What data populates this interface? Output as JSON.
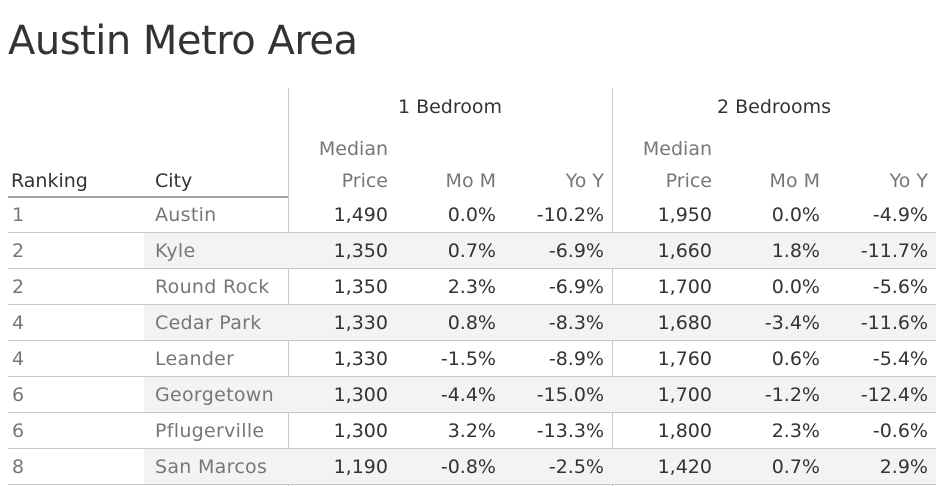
{
  "title": "Austin Metro Area",
  "groups": [
    "1 Bedroom",
    "2 Bedrooms"
  ],
  "columns": {
    "ranking": "Ranking",
    "city": "City",
    "median_line1": "Median",
    "median_line2": "Price",
    "mom": "Mo M",
    "yoy": "Yo Y"
  },
  "chart_data": {
    "type": "table",
    "title": "Austin Metro Area",
    "columns": [
      "Ranking",
      "City",
      "1 Bedroom Median Price",
      "1 Bedroom Mo M",
      "1 Bedroom Yo Y",
      "2 Bedrooms Median Price",
      "2 Bedrooms Mo M",
      "2 Bedrooms Yo Y"
    ],
    "rows": [
      {
        "rank": "1",
        "city": "Austin",
        "b1_price": "1,490",
        "b1_mom": "0.0%",
        "b1_yoy": "-10.2%",
        "b2_price": "1,950",
        "b2_mom": "0.0%",
        "b2_yoy": "-4.9%"
      },
      {
        "rank": "2",
        "city": "Kyle",
        "b1_price": "1,350",
        "b1_mom": "0.7%",
        "b1_yoy": "-6.9%",
        "b2_price": "1,660",
        "b2_mom": "1.8%",
        "b2_yoy": "-11.7%"
      },
      {
        "rank": "2",
        "city": "Round Rock",
        "b1_price": "1,350",
        "b1_mom": "2.3%",
        "b1_yoy": "-6.9%",
        "b2_price": "1,700",
        "b2_mom": "0.0%",
        "b2_yoy": "-5.6%"
      },
      {
        "rank": "4",
        "city": "Cedar Park",
        "b1_price": "1,330",
        "b1_mom": "0.8%",
        "b1_yoy": "-8.3%",
        "b2_price": "1,680",
        "b2_mom": "-3.4%",
        "b2_yoy": "-11.6%"
      },
      {
        "rank": "4",
        "city": "Leander",
        "b1_price": "1,330",
        "b1_mom": "-1.5%",
        "b1_yoy": "-8.9%",
        "b2_price": "1,760",
        "b2_mom": "0.6%",
        "b2_yoy": "-5.4%"
      },
      {
        "rank": "6",
        "city": "Georgetown",
        "b1_price": "1,300",
        "b1_mom": "-4.4%",
        "b1_yoy": "-15.0%",
        "b2_price": "1,700",
        "b2_mom": "-1.2%",
        "b2_yoy": "-12.4%"
      },
      {
        "rank": "6",
        "city": "Pflugerville",
        "b1_price": "1,300",
        "b1_mom": "3.2%",
        "b1_yoy": "-13.3%",
        "b2_price": "1,800",
        "b2_mom": "2.3%",
        "b2_yoy": "-0.6%"
      },
      {
        "rank": "8",
        "city": "San Marcos",
        "b1_price": "1,190",
        "b1_mom": "-0.8%",
        "b1_yoy": "-2.5%",
        "b2_price": "1,420",
        "b2_mom": "0.7%",
        "b2_yoy": "2.9%"
      }
    ]
  }
}
